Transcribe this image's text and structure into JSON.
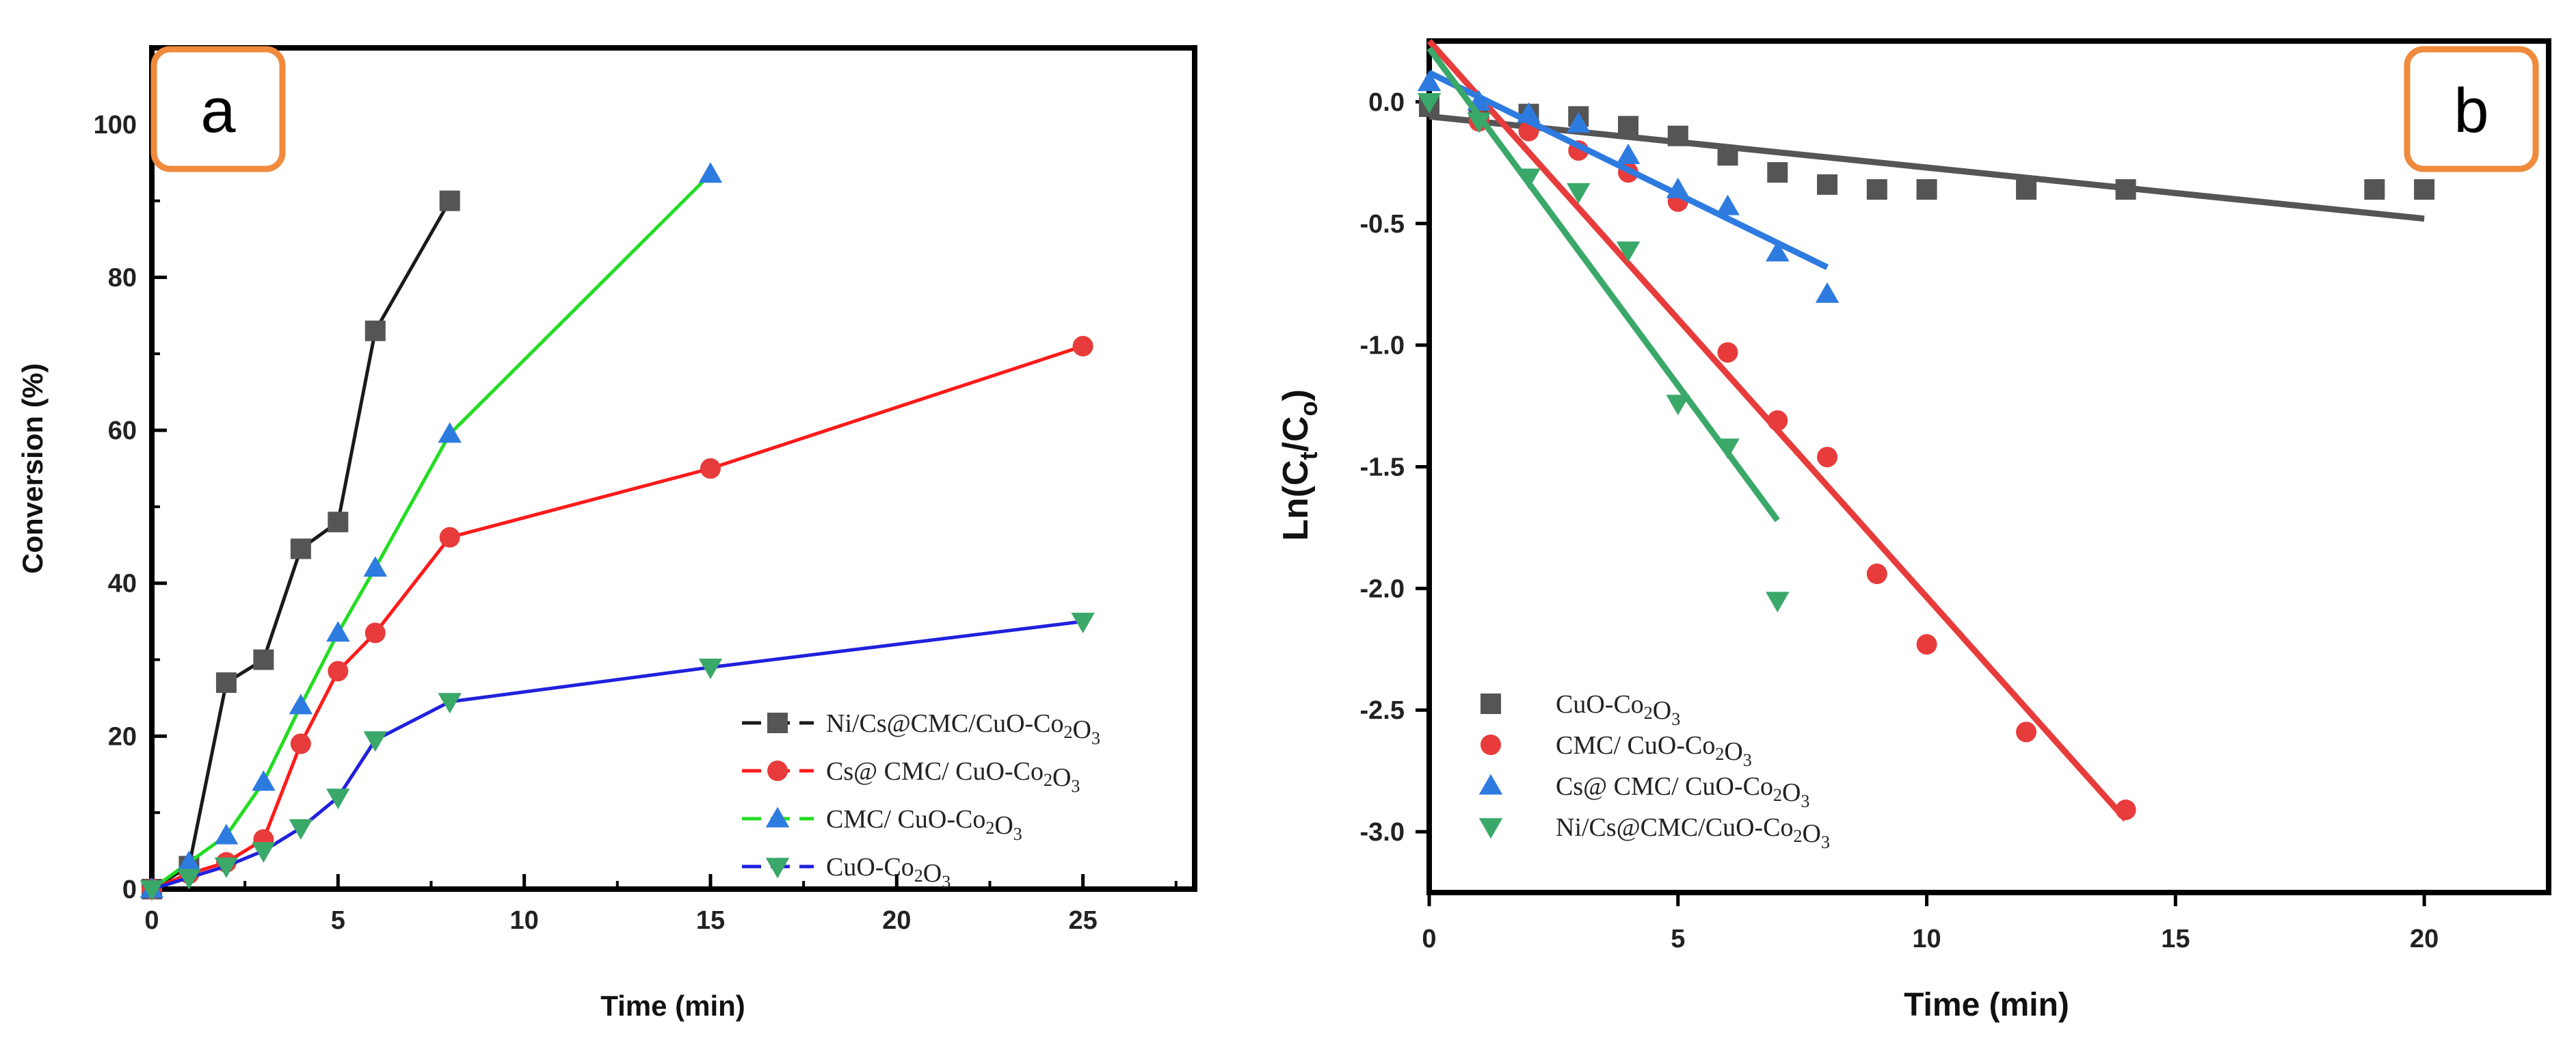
{
  "chart_data": [
    {
      "panel_label": "a",
      "type": "line",
      "title": "",
      "xlabel": "Time (min)",
      "ylabel": "Conversion (%)",
      "xlim": [
        0,
        28
      ],
      "ylim": [
        0,
        110
      ],
      "xticks": [
        0,
        5,
        10,
        15,
        20,
        25
      ],
      "yticks": [
        0,
        20,
        40,
        60,
        80,
        100
      ],
      "legend_position": "bottom-right",
      "series": [
        {
          "name": "Ni/Cs@CMC/CuO-Co2O3",
          "color": "#1a1a1a",
          "marker_color": "#555555",
          "marker": "square",
          "x": [
            0,
            1,
            2,
            3,
            4,
            5,
            6,
            8
          ],
          "y": [
            0,
            3,
            27,
            30,
            44.5,
            48,
            73,
            90
          ]
        },
        {
          "name": "Cs@ CMC/ CuO-Co2O3",
          "color": "#ff1a1a",
          "marker_color": "#e83b3b",
          "marker": "circle",
          "x": [
            0,
            1,
            2,
            3,
            4,
            5,
            6,
            8,
            15,
            25
          ],
          "y": [
            0,
            2,
            3.5,
            6.5,
            19,
            28.5,
            33.5,
            46,
            55,
            71
          ]
        },
        {
          "name": "CMC/ CuO-Co2O3",
          "color": "#22dd22",
          "marker_color": "#2e7be0",
          "marker": "triangle-up",
          "x": [
            0,
            1,
            2,
            3,
            4,
            5,
            6,
            8,
            15
          ],
          "y": [
            0,
            3.5,
            7,
            14,
            24,
            33.5,
            42,
            59.5,
            93.5
          ]
        },
        {
          "name": "CuO-Co2O3",
          "color": "#2020dd",
          "marker_color": "#3aa869",
          "marker": "triangle-down",
          "x": [
            0,
            1,
            2,
            3,
            4,
            5,
            6,
            8,
            15,
            25
          ],
          "y": [
            0,
            1.5,
            3,
            5,
            8,
            12,
            19.5,
            24.5,
            29,
            35
          ]
        }
      ]
    },
    {
      "panel_label": "b",
      "type": "scatter",
      "title": "",
      "xlabel": "Time (min)",
      "ylabel": "Ln(Ct/Co)",
      "ylabel_parts": [
        "Ln(C",
        "t",
        "/C",
        "o",
        ")"
      ],
      "xlim": [
        0,
        22.5
      ],
      "ylim": [
        -3.25,
        0.25
      ],
      "xticks": [
        0,
        5,
        10,
        15,
        20
      ],
      "yticks": [
        0.0,
        -0.5,
        -1.0,
        -1.5,
        -2.0,
        -2.5,
        -3.0
      ],
      "ytick_labels": [
        "0.0",
        "-0.5",
        "-1.0",
        "-1.5",
        "-2.0",
        "-2.5",
        "-3.0"
      ],
      "legend_position": "bottom-left",
      "series": [
        {
          "name": "CuO-Co2O3",
          "color": "#555555",
          "marker": "square",
          "x": [
            0,
            1,
            2,
            3,
            4,
            5,
            6,
            7,
            8,
            9,
            10,
            12,
            14,
            19,
            20
          ],
          "y": [
            -0.02,
            -0.04,
            -0.05,
            -0.06,
            -0.1,
            -0.14,
            -0.22,
            -0.29,
            -0.34,
            -0.36,
            -0.36,
            -0.36,
            -0.36,
            -0.36,
            -0.36
          ],
          "fit": {
            "x": [
              0,
              20
            ],
            "y": [
              -0.06,
              -0.48
            ]
          }
        },
        {
          "name": "CMC/ CuO-Co2O3",
          "color": "#e83b3b",
          "marker": "circle",
          "x": [
            1,
            2,
            3,
            4,
            5,
            6,
            7,
            8,
            9,
            10,
            12,
            14
          ],
          "y": [
            -0.08,
            -0.12,
            -0.2,
            -0.29,
            -0.41,
            -1.03,
            -1.31,
            -1.46,
            -1.94,
            -2.23,
            -2.59,
            -2.91
          ],
          "fit": {
            "x": [
              0,
              14
            ],
            "y": [
              0.25,
              -2.95
            ]
          }
        },
        {
          "name": "Cs@ CMC/ CuO-Co2O3",
          "color": "#2e7be0",
          "marker": "triangle-up",
          "x": [
            0,
            1,
            2,
            3,
            4,
            5,
            6,
            7,
            8
          ],
          "y": [
            0.08,
            0.0,
            -0.05,
            -0.09,
            -0.22,
            -0.36,
            -0.43,
            -0.62,
            -0.79
          ],
          "fit": {
            "x": [
              0,
              8
            ],
            "y": [
              0.12,
              -0.68
            ]
          }
        },
        {
          "name": "Ni/Cs@CMC/CuO-Co2O3",
          "color": "#3aa869",
          "marker": "triangle-down",
          "x": [
            0,
            1,
            2,
            3,
            4,
            5,
            6,
            7
          ],
          "y": [
            0.0,
            -0.08,
            -0.31,
            -0.37,
            -0.61,
            -1.24,
            -1.42,
            -2.05
          ],
          "fit": {
            "x": [
              0,
              7
            ],
            "y": [
              0.22,
              -1.72
            ]
          }
        }
      ]
    }
  ]
}
